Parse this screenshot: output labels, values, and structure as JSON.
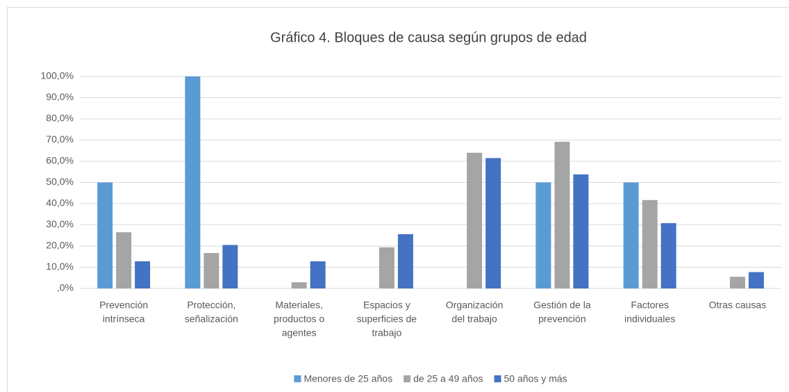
{
  "chart_data": {
    "type": "bar",
    "title": "Gráfico 4. Bloques de causa según grupos de edad",
    "categories": [
      [
        "Prevención",
        "intrínseca"
      ],
      [
        "Protección,",
        "señalización"
      ],
      [
        "Materiales,",
        "productos o",
        "agentes"
      ],
      [
        "Espacios y",
        "superficies de",
        "trabajo"
      ],
      [
        "Organización",
        "del trabajo"
      ],
      [
        "Gestión de la",
        "prevención"
      ],
      [
        "Factores",
        "individuales"
      ],
      [
        "Otras causas"
      ]
    ],
    "series": [
      {
        "name": "Menores de 25 años",
        "color": "#5b9bd5",
        "values": [
          50,
          100,
          0,
          0,
          0,
          50,
          50,
          0
        ]
      },
      {
        "name": "de 25 a 49 años",
        "color": "#a5a5a5",
        "values": [
          26.5,
          16.7,
          2.9,
          19.4,
          64,
          69.2,
          41.7,
          5.5
        ]
      },
      {
        "name": "50 años y más",
        "color": "#4472c4",
        "values": [
          12.8,
          20.5,
          12.8,
          25.6,
          61.5,
          53.8,
          30.8,
          7.7
        ]
      }
    ],
    "ylim": [
      0,
      100
    ],
    "yticks": [
      {
        "value": 0,
        "label": ",0%"
      },
      {
        "value": 10,
        "label": "10,0%"
      },
      {
        "value": 20,
        "label": "20,0%"
      },
      {
        "value": 30,
        "label": "30,0%"
      },
      {
        "value": 40,
        "label": "40,0%"
      },
      {
        "value": 50,
        "label": "50,0%"
      },
      {
        "value": 60,
        "label": "60,0%"
      },
      {
        "value": 70,
        "label": "70,0%"
      },
      {
        "value": 80,
        "label": "80,0%"
      },
      {
        "value": 90,
        "label": "90,0%"
      },
      {
        "value": 100,
        "label": "100,0%"
      }
    ],
    "grid": true,
    "legend": "bottom"
  }
}
